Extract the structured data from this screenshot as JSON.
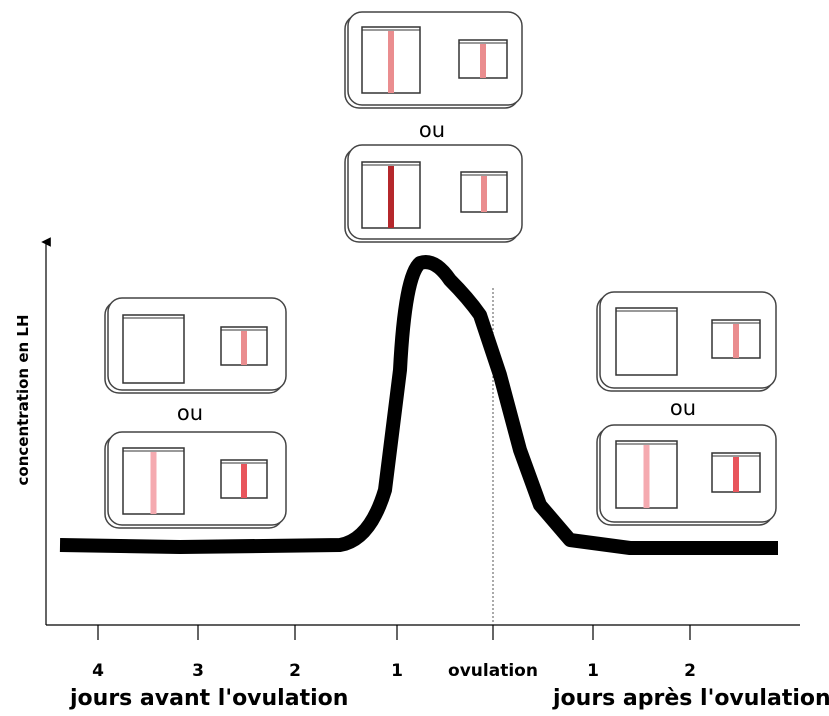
{
  "y_axis": {
    "label": "concentration en LH"
  },
  "x_axis": {
    "tick_labels": [
      "4",
      "3",
      "2",
      "1",
      "ovulation",
      "1",
      "2"
    ],
    "group_labels": {
      "before": "jours avant l'ovulation",
      "after": "jours après l'ovulation"
    }
  },
  "alternatives": {
    "top": "ou",
    "left": "ou",
    "right": "ou"
  }
}
